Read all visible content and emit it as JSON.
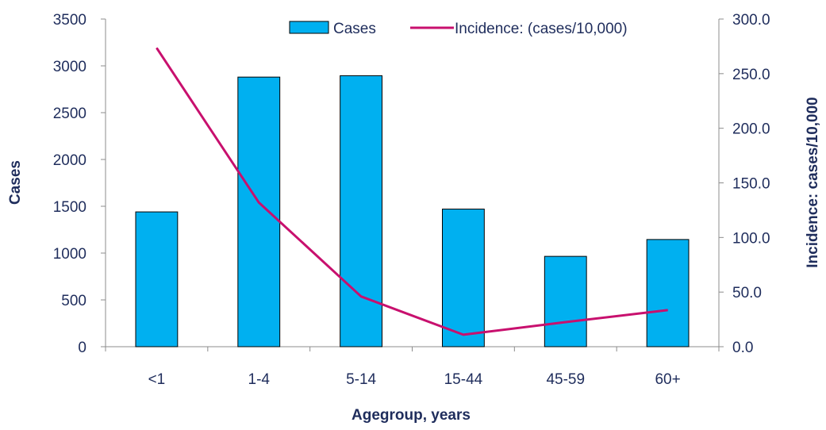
{
  "chart_data": {
    "type": "bar",
    "categories": [
      "<1",
      "1-4",
      "5-14",
      "15-44",
      "45-59",
      "60+"
    ],
    "series": [
      {
        "name": "Cases",
        "kind": "bar",
        "axis": "left",
        "color": "#00b0f0",
        "values": [
          1440,
          2880,
          2895,
          1470,
          965,
          1145
        ]
      },
      {
        "name": "Incidence: (cases/10,000)",
        "kind": "line",
        "axis": "right",
        "color": "#c8106e",
        "values": [
          273.5,
          132.0,
          46.0,
          11.0,
          22.5,
          33.5
        ]
      }
    ],
    "xlabel": "Agegroup, years",
    "ylabel": "Cases",
    "y2label": "Incidence: cases/10,000",
    "ylim": [
      0,
      3500
    ],
    "y2lim": [
      0,
      300
    ],
    "yticks": [
      "0",
      "500",
      "1000",
      "1500",
      "2000",
      "2500",
      "3000",
      "3500"
    ],
    "y2ticks": [
      "0.0",
      "50.0",
      "100.0",
      "150.0",
      "200.0",
      "250.0",
      "300.0"
    ],
    "legend_position": "top-right",
    "grid": false,
    "axis_color": "#8c8c8c",
    "text_color": "#1f2d5c"
  }
}
